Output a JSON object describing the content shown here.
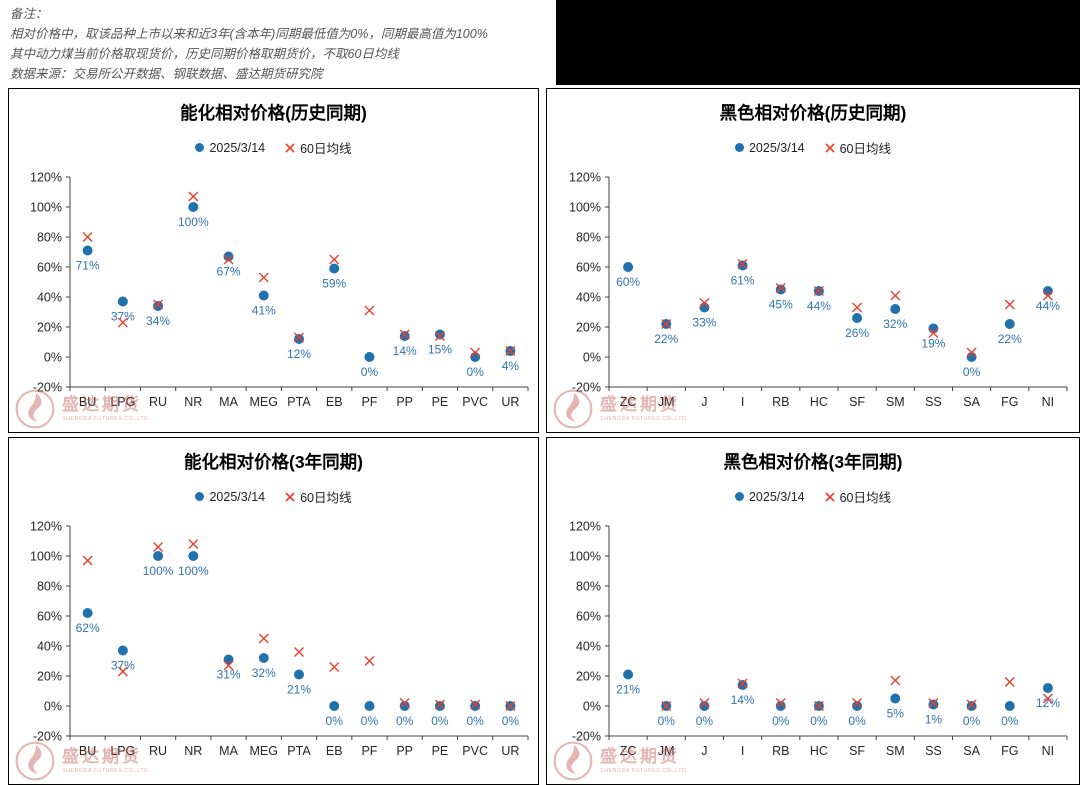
{
  "notes": {
    "lines": [
      "备注：",
      "相对价格中，取该品种上市以来和近3年(含本年)同期最低值为0%，同期最高值为100%",
      "其中动力煤当前价格取现货价，历史同期价格取期货价，不取60日均线",
      "数据来源：交易所公开数据、钢联数据、盛达期货研究院"
    ]
  },
  "style": {
    "dot_color": "#1f72ae",
    "x_color": "#e8402d",
    "label_color": "#2e74b5",
    "axis_color": "#404040",
    "tick_label_color": "#262626",
    "watermark_color": "#c0504d"
  },
  "watermark": {
    "name": "盛达期货",
    "subtext": "SHENGDA FUTURES CO.,LTD"
  },
  "chart_data": [
    {
      "type": "scatter",
      "title": "能化相对价格(历史同期)",
      "categories": [
        "BU",
        "LPG",
        "RU",
        "NR",
        "MA",
        "MEG",
        "PTA",
        "EB",
        "PF",
        "PP",
        "PE",
        "PVC",
        "UR"
      ],
      "ylim": [
        -20,
        120
      ],
      "ytick_step": 20,
      "grid": false,
      "legend_position": "top",
      "series": [
        {
          "name": "2025/3/14",
          "marker": "circle",
          "values": [
            71,
            37,
            34,
            100,
            67,
            41,
            12,
            59,
            0,
            14,
            15,
            0,
            4
          ],
          "labels": [
            "71%",
            "37%",
            "34%",
            "100%",
            "67%",
            "41%",
            "12%",
            "59%",
            "0%",
            "14%",
            "15%",
            "0%",
            "4%"
          ]
        },
        {
          "name": "60日均线",
          "marker": "x",
          "values": [
            80,
            23,
            35,
            107,
            65,
            53,
            13,
            65,
            31,
            15,
            14,
            3,
            4
          ]
        }
      ]
    },
    {
      "type": "scatter",
      "title": "黑色相对价格(历史同期)",
      "categories": [
        "ZC",
        "JM",
        "J",
        "I",
        "RB",
        "HC",
        "SF",
        "SM",
        "SS",
        "SA",
        "FG",
        "NI"
      ],
      "ylim": [
        -20,
        120
      ],
      "ytick_step": 20,
      "grid": false,
      "legend_position": "top",
      "series": [
        {
          "name": "2025/3/14",
          "marker": "circle",
          "values": [
            60,
            22,
            33,
            61,
            45,
            44,
            26,
            32,
            19,
            0,
            22,
            44
          ],
          "labels": [
            "60%",
            "22%",
            "33%",
            "61%",
            "45%",
            "44%",
            "26%",
            "32%",
            "19%",
            "0%",
            "22%",
            "44%"
          ]
        },
        {
          "name": "60日均线",
          "marker": "x",
          "values": [
            null,
            22,
            36,
            62,
            46,
            44,
            33,
            41,
            16,
            3,
            35,
            41
          ]
        }
      ]
    },
    {
      "type": "scatter",
      "title": "能化相对价格(3年同期)",
      "categories": [
        "BU",
        "LPG",
        "RU",
        "NR",
        "MA",
        "MEG",
        "PTA",
        "EB",
        "PF",
        "PP",
        "PE",
        "PVC",
        "UR"
      ],
      "ylim": [
        -20,
        120
      ],
      "ytick_step": 20,
      "grid": false,
      "legend_position": "top",
      "series": [
        {
          "name": "2025/3/14",
          "marker": "circle",
          "values": [
            62,
            37,
            100,
            100,
            31,
            32,
            21,
            0,
            0,
            0,
            0,
            0,
            0
          ],
          "labels": [
            "62%",
            "37%",
            "100%",
            "100%",
            "31%",
            "32%",
            "21%",
            "0%",
            "0%",
            "0%",
            "0%",
            "0%",
            "0%"
          ]
        },
        {
          "name": "60日均线",
          "marker": "x",
          "values": [
            97,
            23,
            106,
            108,
            27,
            45,
            36,
            26,
            30,
            2,
            1,
            1,
            0
          ]
        }
      ]
    },
    {
      "type": "scatter",
      "title": "黑色相对价格(3年同期)",
      "categories": [
        "ZC",
        "JM",
        "J",
        "I",
        "RB",
        "HC",
        "SF",
        "SM",
        "SS",
        "SA",
        "FG",
        "NI"
      ],
      "ylim": [
        -20,
        120
      ],
      "ytick_step": 20,
      "grid": false,
      "legend_position": "top",
      "series": [
        {
          "name": "2025/3/14",
          "marker": "circle",
          "values": [
            21,
            0,
            0,
            14,
            0,
            0,
            0,
            5,
            1,
            0,
            0,
            12
          ],
          "labels": [
            "21%",
            "0%",
            "0%",
            "14%",
            "0%",
            "0%",
            "0%",
            "5%",
            "1%",
            "0%",
            "0%",
            "12%"
          ]
        },
        {
          "name": "60日均线",
          "marker": "x",
          "values": [
            null,
            0,
            2,
            15,
            2,
            0,
            2,
            17,
            2,
            1,
            16,
            5
          ]
        }
      ]
    }
  ]
}
